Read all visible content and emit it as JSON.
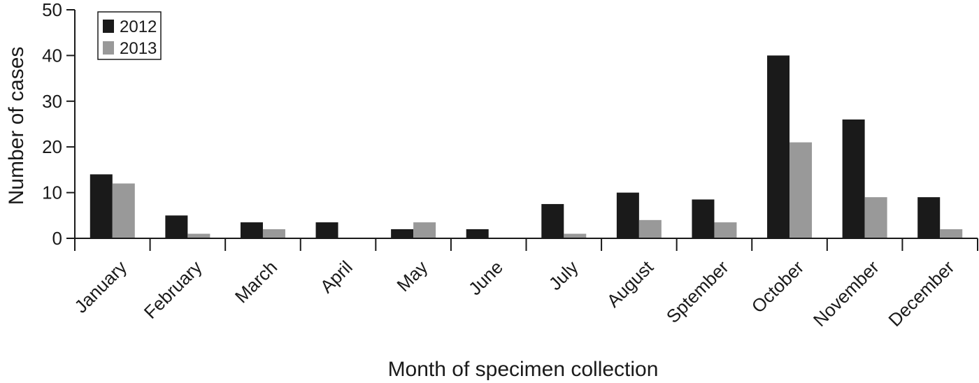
{
  "chart_data": {
    "type": "bar",
    "title": "",
    "xlabel": "Month of specimen collection",
    "ylabel": "Number of cases",
    "ylim": [
      0,
      50
    ],
    "yticks": [
      "0",
      "10",
      "20",
      "30",
      "40",
      "50"
    ],
    "categories": [
      "January",
      "February",
      "March",
      "April",
      "May",
      "June",
      "July",
      "August",
      "Sptember",
      "October",
      "November",
      "December"
    ],
    "series": [
      {
        "name": "2012",
        "color": "#1a1a1a",
        "values": [
          14,
          5,
          3.5,
          3.5,
          2,
          2,
          7.5,
          10,
          8.5,
          40,
          26,
          9
        ]
      },
      {
        "name": "2013",
        "color": "#999999",
        "values": [
          12,
          1,
          2,
          0,
          3.5,
          0,
          1,
          4,
          3.5,
          21,
          9,
          2
        ]
      }
    ],
    "legend_position": "top-left",
    "grid": false
  }
}
